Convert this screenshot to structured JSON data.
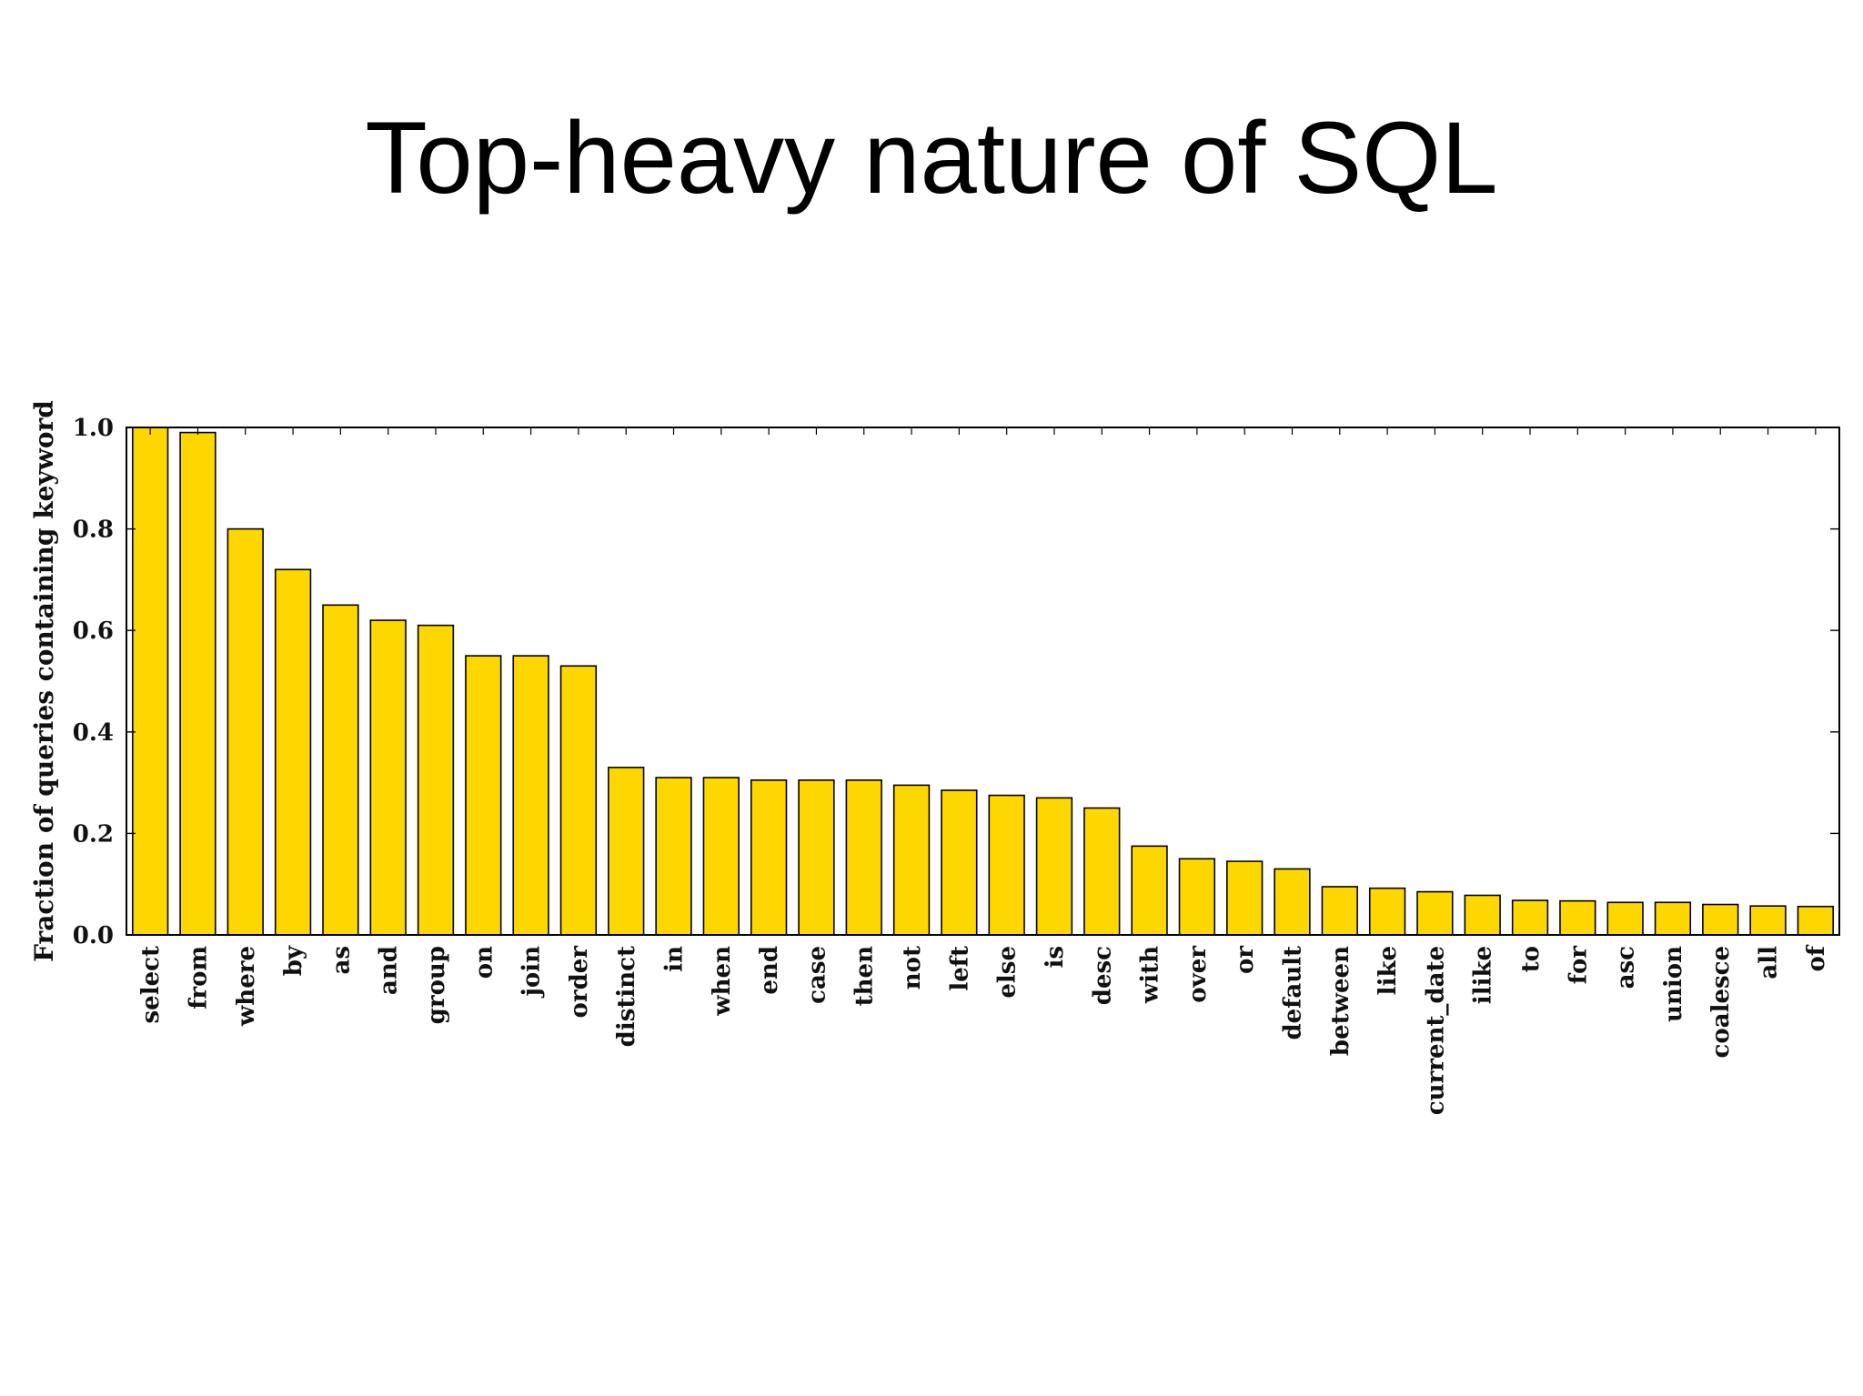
{
  "slide": {
    "title": "Top-heavy nature of SQL"
  },
  "colors": {
    "bar_fill": "#FFD700",
    "bar_stroke": "#000000"
  },
  "chart_data": {
    "type": "bar",
    "title": "",
    "xlabel": "",
    "ylabel": "Fraction of queries containing keyword",
    "ylim": [
      0,
      1.0
    ],
    "yticks": [
      "0.0",
      "0.2",
      "0.4",
      "0.6",
      "0.8",
      "1.0"
    ],
    "grid": false,
    "categories": [
      "select",
      "from",
      "where",
      "by",
      "as",
      "and",
      "group",
      "on",
      "join",
      "order",
      "distinct",
      "in",
      "when",
      "end",
      "case",
      "then",
      "not",
      "left",
      "else",
      "is",
      "desc",
      "with",
      "over",
      "or",
      "default",
      "between",
      "like",
      "current_date",
      "ilike",
      "to",
      "for",
      "asc",
      "union",
      "coalesce",
      "all",
      "of"
    ],
    "values": [
      1.0,
      0.99,
      0.8,
      0.72,
      0.65,
      0.62,
      0.61,
      0.55,
      0.55,
      0.53,
      0.33,
      0.31,
      0.31,
      0.305,
      0.305,
      0.305,
      0.295,
      0.285,
      0.275,
      0.27,
      0.25,
      0.175,
      0.15,
      0.145,
      0.13,
      0.095,
      0.092,
      0.085,
      0.078,
      0.068,
      0.067,
      0.064,
      0.064,
      0.06,
      0.057,
      0.056
    ]
  }
}
